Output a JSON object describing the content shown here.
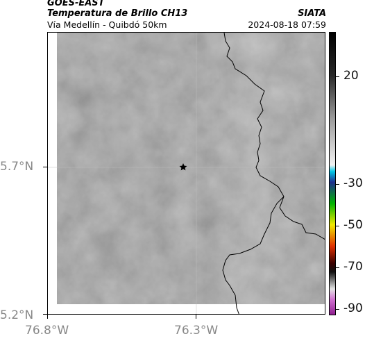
{
  "header": {
    "satellite": "GOES-EAST",
    "product": "Temperatura de Brillo CH13",
    "route": "Vía Medellín - Quibdó 50km",
    "source": "SIATA",
    "datetime": "2024-08-18 07:59"
  },
  "map": {
    "lat_labels": [
      "5.7°N",
      "5.2°N"
    ],
    "lon_labels": [
      "76.8°W",
      "76.3°W"
    ],
    "marker": "star-marker"
  },
  "colorbar": {
    "ticks": [
      "20",
      "-30",
      "-50",
      "-70",
      "-90"
    ],
    "stops": [
      {
        "t": 20,
        "color": "#2a2a2a"
      },
      {
        "t": 0,
        "color": "#9a9a9a"
      },
      {
        "t": -22,
        "color": "#f2f2f2"
      },
      {
        "t": -25,
        "color": "#00c8e6"
      },
      {
        "t": -30,
        "color": "#1f2f8f"
      },
      {
        "t": -40,
        "color": "#00b400"
      },
      {
        "t": -50,
        "color": "#f0e800"
      },
      {
        "t": -60,
        "color": "#e03000"
      },
      {
        "t": -68,
        "color": "#3a0000"
      },
      {
        "t": -72,
        "color": "#101010"
      },
      {
        "t": -80,
        "color": "#e4e4e4"
      },
      {
        "t": -85,
        "color": "#d070d0"
      },
      {
        "t": -92,
        "color": "#902090"
      }
    ]
  }
}
